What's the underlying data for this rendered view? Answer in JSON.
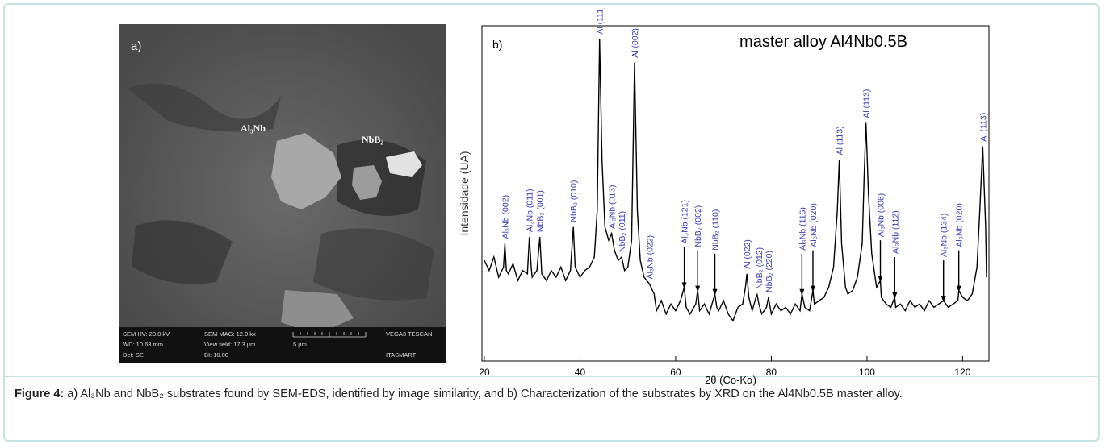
{
  "figure_a": {
    "label": "a)",
    "annotations": [
      "Al₃Nb",
      "NbB₂"
    ],
    "info_bar": [
      [
        "SEM HV: 20.0 kV",
        "SEM MAG: 12.0 kx",
        "VEGA3 TESCAN"
      ],
      [
        "WD: 10.63 mm",
        "View field: 17.3 µm",
        "5 µm"
      ],
      [
        "Det: SE",
        "BI: 10.00",
        "ITASMART"
      ]
    ]
  },
  "chart_data": {
    "type": "line",
    "panel_label": "b)",
    "title": "master alloy Al4Nb0.5B",
    "x_label": "2θ (Co-Kα)",
    "y_label": "Intensidade (UA)",
    "color": "#000000",
    "x": [
      20,
      21,
      22,
      23,
      24,
      24.3,
      24.6,
      25,
      26,
      27,
      28,
      29,
      29.4,
      29.8,
      30,
      31,
      31.6,
      32,
      33,
      34,
      35,
      36,
      37,
      38,
      38.6,
      39,
      40,
      41,
      42,
      43,
      43.6,
      44.1,
      44.6,
      45.2,
      46,
      46.6,
      47.2,
      48,
      48.7,
      49.3,
      50,
      50.8,
      51.4,
      52,
      52.6,
      53.4,
      54.5,
      55.5,
      56,
      57,
      58,
      59,
      60,
      61,
      61.8,
      62.2,
      63,
      64.2,
      64.6,
      65,
      66,
      67,
      68.2,
      68.6,
      69,
      70,
      71,
      72,
      73,
      74,
      74.6,
      74.9,
      75.3,
      76,
      77,
      77.4,
      78,
      79,
      79.4,
      80,
      81,
      82,
      83,
      84,
      85,
      86,
      86.4,
      87,
      88,
      88.7,
      89,
      90,
      91,
      92,
      93,
      93.8,
      94.2,
      94.7,
      95.5,
      96,
      97,
      98,
      99,
      99.4,
      99.8,
      100.3,
      101,
      102,
      102.8,
      103,
      104,
      105,
      105.8,
      106,
      107,
      108,
      109,
      110,
      111,
      112,
      113,
      114,
      115,
      116,
      117,
      118,
      119,
      119.2,
      120,
      121,
      122,
      123,
      123.6,
      124.2,
      124.8,
      125
    ],
    "values": [
      30,
      27,
      31,
      25,
      28,
      35,
      27,
      26,
      29,
      24,
      27,
      26,
      37,
      28,
      25,
      27,
      37,
      26,
      24,
      27,
      25,
      28,
      24,
      27,
      40,
      28,
      25,
      27,
      28,
      31,
      45,
      96,
      60,
      40,
      36,
      38,
      33,
      30,
      31,
      27,
      28,
      36,
      89,
      45,
      30,
      25,
      23,
      20,
      15,
      18,
      14,
      17,
      15,
      18,
      22,
      16,
      14,
      17,
      21,
      15,
      17,
      14,
      20,
      16,
      15,
      18,
      14,
      12,
      16,
      17,
      22,
      26,
      19,
      15,
      20,
      17,
      14,
      16,
      19,
      14,
      17,
      15,
      16,
      14,
      17,
      15,
      20,
      16,
      15,
      21,
      17,
      18,
      19,
      22,
      28,
      45,
      60,
      35,
      22,
      20,
      21,
      25,
      35,
      55,
      71,
      50,
      32,
      22,
      24,
      19,
      17,
      16,
      19,
      16,
      17,
      15,
      18,
      16,
      17,
      15,
      18,
      16,
      17,
      18,
      16,
      17,
      18,
      21,
      19,
      18,
      20,
      28,
      45,
      64,
      40,
      25
    ],
    "xlim": [
      19.5,
      125.5
    ],
    "ylim": [
      0,
      100
    ],
    "xticks": [
      20,
      40,
      60,
      80,
      100,
      120
    ],
    "peak_labels": [
      {
        "text": "Al₃Nb (002)",
        "x": 24.3,
        "arrow": false
      },
      {
        "text": "Al₃Nb (011)",
        "x": 29.4,
        "arrow": false
      },
      {
        "text": "NbB₂ (001)",
        "x": 31.6,
        "arrow": false
      },
      {
        "text": "NbB₂ (010)",
        "x": 38.6,
        "arrow": false
      },
      {
        "text": "Al (111)",
        "x": 44.1,
        "arrow": false
      },
      {
        "text": "Al₃Nb (013)",
        "x": 46.6,
        "arrow": false
      },
      {
        "text": "NbB₂ (011)",
        "x": 48.7,
        "arrow": false
      },
      {
        "text": "Al (002)",
        "x": 51.4,
        "arrow": false
      },
      {
        "text": "Al₃Nb (022)",
        "x": 54.5,
        "arrow": false
      },
      {
        "text": "Al₃Nb (121)",
        "x": 61.8,
        "arrow": true
      },
      {
        "text": "NbB₂ (002)",
        "x": 64.6,
        "arrow": true
      },
      {
        "text": "NbB₂ (110)",
        "x": 68.2,
        "arrow": true
      },
      {
        "text": "Al (022)",
        "x": 74.9,
        "arrow": false
      },
      {
        "text": "NbB₂ (012)",
        "x": 77.4,
        "arrow": false
      },
      {
        "text": "NbB₂ (220)",
        "x": 79.4,
        "arrow": false
      },
      {
        "text": "Al₃Nb (116)",
        "x": 86.4,
        "arrow": true
      },
      {
        "text": "Al₃Nb (020)",
        "x": 88.7,
        "arrow": true
      },
      {
        "text": "Al (113)",
        "x": 94.2,
        "arrow": false
      },
      {
        "text": "Al (113)",
        "x": 99.8,
        "arrow": false
      },
      {
        "text": "Al₃Nb (006)",
        "x": 102.8,
        "arrow": true
      },
      {
        "text": "Al₃Nb (112)",
        "x": 105.8,
        "arrow": true
      },
      {
        "text": "Al₃Nb (134)",
        "x": 116,
        "arrow": true
      },
      {
        "text": "Al₃Nb (020)",
        "x": 119.2,
        "arrow": true
      },
      {
        "text": "Al (113)",
        "x": 124.2,
        "arrow": false
      }
    ]
  },
  "caption": {
    "label": "Figure 4:",
    "text": "a) Al₃Nb and NbB₂ substrates found by SEM-EDS, identified by image similarity, and b) Characterization of the substrates by XRD on the Al4Nb0.5B master alloy."
  }
}
